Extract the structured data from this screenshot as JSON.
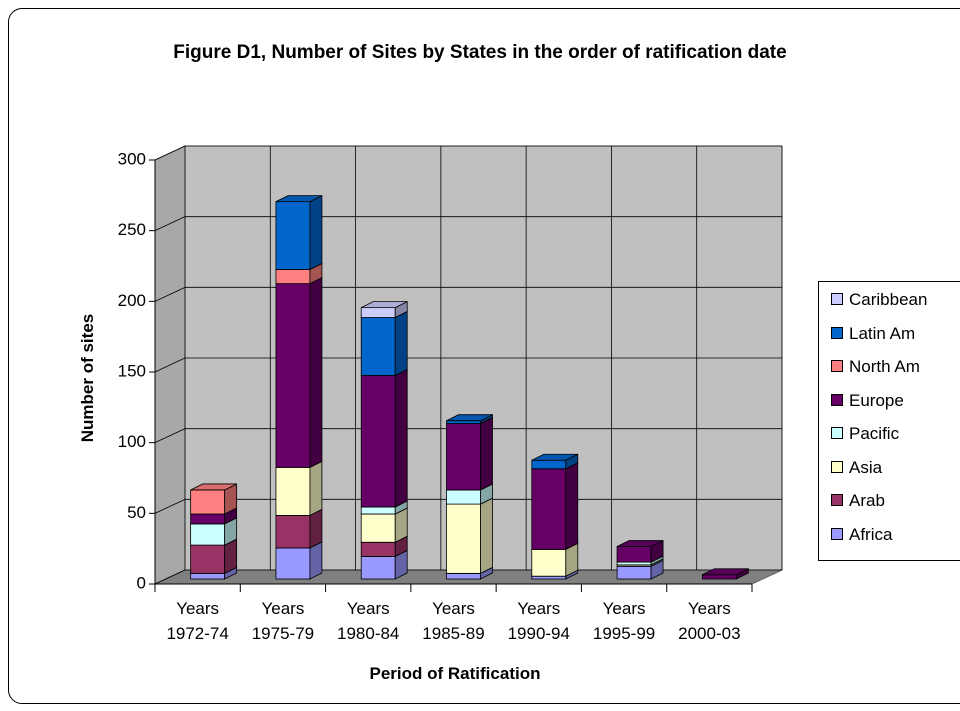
{
  "chart_data": {
    "type": "bar3d_stacked",
    "title": "Figure D1, Number of Sites by States in the order of ratification date",
    "x_label": "Period of Ratification",
    "y_label": "Number of sites",
    "categories": [
      "Years 1972-74",
      "Years 1975-79",
      "Years 1980-84",
      "Years 1985-89",
      "Years 1990-94",
      "Years 1995-99",
      "Years 2000-03"
    ],
    "series": [
      {
        "name": "Africa",
        "color": "#9999ff",
        "values": [
          4,
          22,
          16,
          4,
          2,
          9,
          0
        ]
      },
      {
        "name": "Arab",
        "color": "#993366",
        "values": [
          20,
          23,
          10,
          0,
          0,
          0,
          0
        ]
      },
      {
        "name": "Asia",
        "color": "#ffffcc",
        "values": [
          0,
          34,
          20,
          49,
          19,
          1,
          0
        ]
      },
      {
        "name": "Pacific",
        "color": "#ccffff",
        "values": [
          15,
          0,
          5,
          10,
          0,
          2,
          0
        ]
      },
      {
        "name": "Europe",
        "color": "#660066",
        "values": [
          7,
          130,
          93,
          47,
          57,
          11,
          3
        ]
      },
      {
        "name": "North Am",
        "color": "#ff8080",
        "values": [
          17,
          10,
          0,
          0,
          0,
          0,
          0
        ]
      },
      {
        "name": "Latin Am",
        "color": "#0066cc",
        "values": [
          0,
          48,
          41,
          2,
          6,
          0,
          0
        ]
      },
      {
        "name": "Caribbean",
        "color": "#ccccff",
        "values": [
          0,
          0,
          7,
          0,
          0,
          0,
          0
        ]
      }
    ],
    "ylim": [
      0,
      300
    ],
    "yticks": [
      0,
      50,
      100,
      150,
      200,
      250,
      300
    ],
    "grid": true,
    "legend": "right"
  }
}
